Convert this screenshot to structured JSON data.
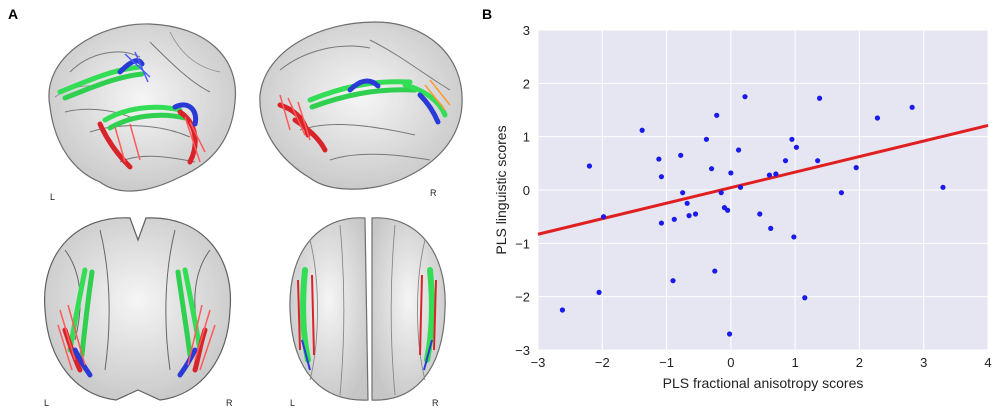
{
  "panel_a": {
    "label": "A",
    "views": [
      {
        "left_label": "L",
        "right_label": ""
      },
      {
        "left_label": "",
        "right_label": "R"
      },
      {
        "left_label": "L",
        "right_label": "R"
      },
      {
        "left_label": "L",
        "right_label": "R"
      }
    ]
  },
  "panel_b": {
    "label": "B"
  },
  "colors": {
    "plot_bg": "#e6e6f2",
    "grid": "#ffffff",
    "points": "#1a1aee",
    "fit_line": "#e02020",
    "tract_green": "#33dd55",
    "tract_blue": "#2a3ad6",
    "tract_red": "#d8232a"
  },
  "chart_data": {
    "type": "scatter",
    "title": "",
    "xlabel": "PLS fractional anisotropy scores",
    "ylabel": "PLS linguistic scores",
    "xlim": [
      -3,
      4
    ],
    "ylim": [
      -3,
      3
    ],
    "xticks": [
      -3,
      -2,
      -1,
      0,
      1,
      2,
      3,
      4
    ],
    "yticks": [
      3,
      2,
      1,
      0,
      -1,
      -2,
      -3
    ],
    "grid": true,
    "fit_line": {
      "x": [
        -3,
        4
      ],
      "y": [
        -0.83,
        1.21
      ]
    },
    "points": [
      {
        "x": -2.62,
        "y": -2.25
      },
      {
        "x": -2.2,
        "y": 0.45
      },
      {
        "x": -2.05,
        "y": -1.92
      },
      {
        "x": -1.98,
        "y": -0.5
      },
      {
        "x": -1.38,
        "y": 1.12
      },
      {
        "x": -1.12,
        "y": 0.58
      },
      {
        "x": -1.08,
        "y": 0.25
      },
      {
        "x": -1.08,
        "y": -0.62
      },
      {
        "x": -0.88,
        "y": -0.55
      },
      {
        "x": -0.9,
        "y": -1.7
      },
      {
        "x": -0.78,
        "y": 0.65
      },
      {
        "x": -0.75,
        "y": -0.05
      },
      {
        "x": -0.68,
        "y": -0.25
      },
      {
        "x": -0.65,
        "y": -0.48
      },
      {
        "x": -0.55,
        "y": -0.45
      },
      {
        "x": -0.38,
        "y": 0.95
      },
      {
        "x": -0.3,
        "y": 0.4
      },
      {
        "x": -0.25,
        "y": -1.52
      },
      {
        "x": -0.22,
        "y": 1.4
      },
      {
        "x": -0.15,
        "y": -0.05
      },
      {
        "x": -0.1,
        "y": -0.33
      },
      {
        "x": -0.05,
        "y": -0.38
      },
      {
        "x": 0.0,
        "y": 0.32
      },
      {
        "x": -0.02,
        "y": -2.7
      },
      {
        "x": 0.12,
        "y": 0.75
      },
      {
        "x": 0.15,
        "y": 0.05
      },
      {
        "x": 0.22,
        "y": 1.75
      },
      {
        "x": 0.45,
        "y": -0.45
      },
      {
        "x": 0.6,
        "y": 0.28
      },
      {
        "x": 0.62,
        "y": -0.72
      },
      {
        "x": 0.7,
        "y": 0.3
      },
      {
        "x": 0.85,
        "y": 0.55
      },
      {
        "x": 0.95,
        "y": 0.95
      },
      {
        "x": 0.98,
        "y": -0.88
      },
      {
        "x": 1.02,
        "y": 0.8
      },
      {
        "x": 1.15,
        "y": -2.02
      },
      {
        "x": 1.35,
        "y": 0.55
      },
      {
        "x": 1.38,
        "y": 1.72
      },
      {
        "x": 1.72,
        "y": -0.05
      },
      {
        "x": 1.95,
        "y": 0.42
      },
      {
        "x": 2.28,
        "y": 1.35
      },
      {
        "x": 2.82,
        "y": 1.55
      },
      {
        "x": 3.3,
        "y": 0.05
      }
    ]
  }
}
